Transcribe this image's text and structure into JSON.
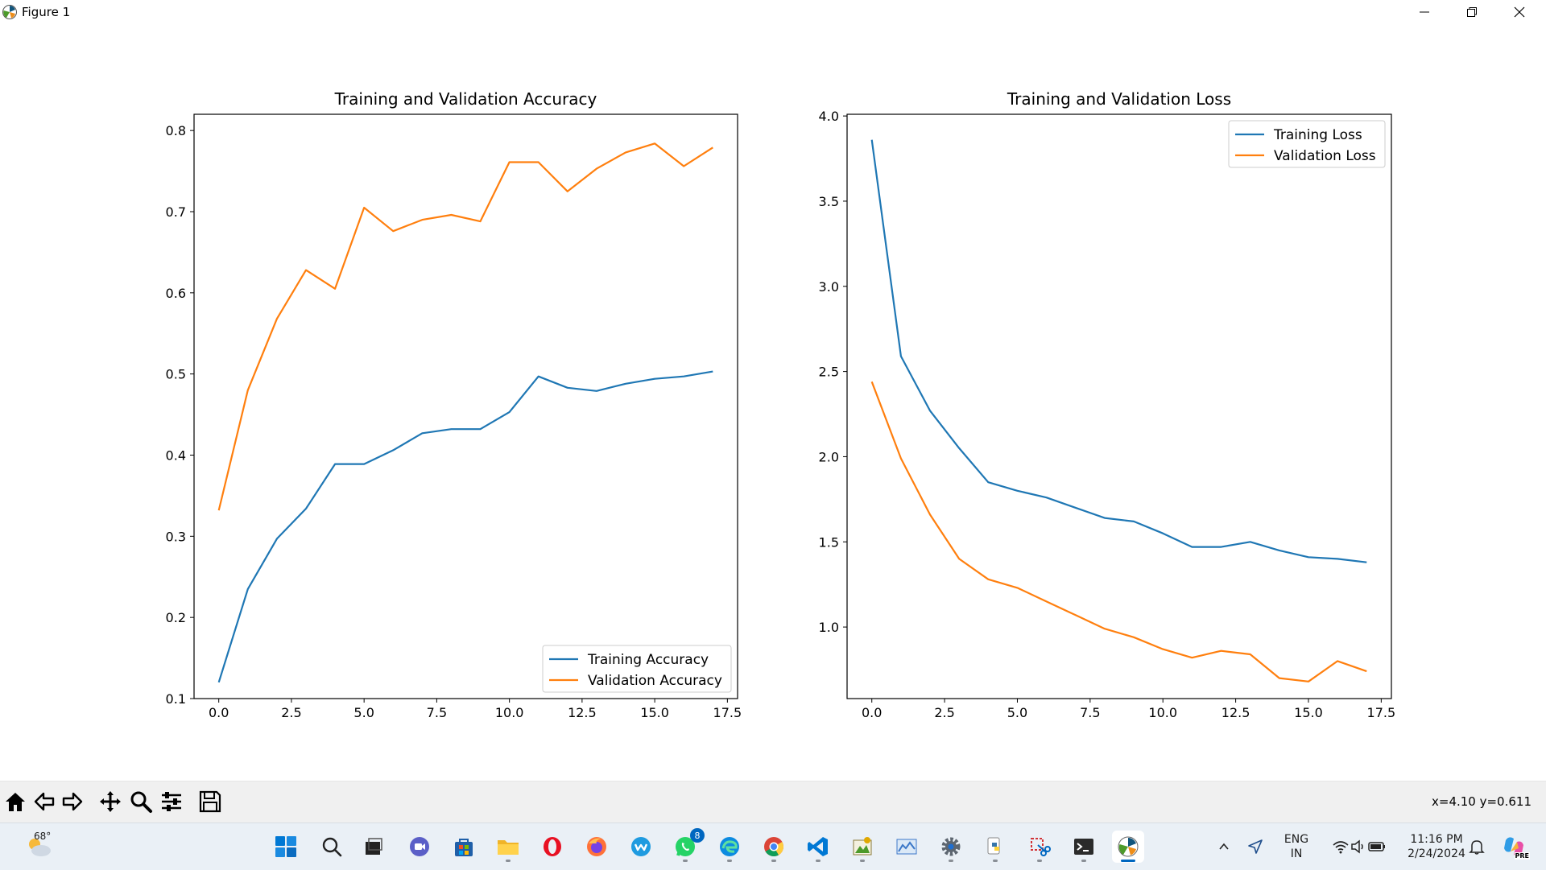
{
  "window": {
    "title": "Figure 1"
  },
  "window_controls": {
    "minimize": "—",
    "restore": "❐",
    "close": "✕"
  },
  "colors": {
    "training": "#1f77b4",
    "validation": "#ff7f0e",
    "axes": "#000000",
    "taskbar_bg": "#eaf0f6",
    "accent": "#0067c0"
  },
  "chart_data": [
    {
      "type": "line",
      "title": "Training and Validation Accuracy",
      "xlabel": "",
      "ylabel": "",
      "xlim": [
        -0.85,
        17.85
      ],
      "ylim": [
        0.1,
        0.82
      ],
      "xticks": [
        "0.0",
        "2.5",
        "5.0",
        "7.5",
        "10.0",
        "12.5",
        "15.0",
        "17.5"
      ],
      "yticks": [
        "0.1",
        "0.2",
        "0.3",
        "0.4",
        "0.5",
        "0.6",
        "0.7",
        "0.8"
      ],
      "grid": false,
      "legend_position": "lower right",
      "x": [
        0,
        1,
        2,
        3,
        4,
        5,
        6,
        7,
        8,
        9,
        10,
        11,
        12,
        13,
        14,
        15,
        16,
        17
      ],
      "series": [
        {
          "name": "Training Accuracy",
          "color": "#1f77b4",
          "values": [
            0.12,
            0.235,
            0.297,
            0.334,
            0.389,
            0.389,
            0.406,
            0.427,
            0.432,
            0.432,
            0.453,
            0.497,
            0.483,
            0.479,
            0.488,
            0.494,
            0.497,
            0.503
          ]
        },
        {
          "name": "Validation Accuracy",
          "color": "#ff7f0e",
          "values": [
            0.332,
            0.48,
            0.568,
            0.628,
            0.605,
            0.705,
            0.676,
            0.69,
            0.696,
            0.688,
            0.761,
            0.761,
            0.725,
            0.753,
            0.773,
            0.784,
            0.756,
            0.779
          ]
        }
      ]
    },
    {
      "type": "line",
      "title": "Training and Validation Loss",
      "xlabel": "",
      "ylabel": "",
      "xlim": [
        -0.85,
        17.85
      ],
      "ylim": [
        0.58,
        4.01
      ],
      "xticks": [
        "0.0",
        "2.5",
        "5.0",
        "7.5",
        "10.0",
        "12.5",
        "15.0",
        "17.5"
      ],
      "yticks": [
        "1.0",
        "1.5",
        "2.0",
        "2.5",
        "3.0",
        "3.5",
        "4.0"
      ],
      "grid": false,
      "legend_position": "upper right",
      "x": [
        0,
        1,
        2,
        3,
        4,
        5,
        6,
        7,
        8,
        9,
        10,
        11,
        12,
        13,
        14,
        15,
        16,
        17
      ],
      "series": [
        {
          "name": "Training Loss",
          "color": "#1f77b4",
          "values": [
            3.86,
            2.59,
            2.27,
            2.05,
            1.85,
            1.8,
            1.76,
            1.7,
            1.64,
            1.62,
            1.55,
            1.47,
            1.47,
            1.5,
            1.45,
            1.41,
            1.4,
            1.38
          ]
        },
        {
          "name": "Validation Loss",
          "color": "#ff7f0e",
          "values": [
            2.44,
            1.99,
            1.66,
            1.4,
            1.28,
            1.23,
            1.15,
            1.07,
            0.99,
            0.94,
            0.87,
            0.82,
            0.86,
            0.84,
            0.7,
            0.68,
            0.8,
            0.74
          ]
        }
      ]
    }
  ],
  "toolbar": {
    "buttons": [
      "home-icon",
      "back-icon",
      "forward-icon",
      "pan-icon",
      "zoom-icon",
      "configure-icon",
      "save-icon"
    ],
    "coords": "x=4.10 y=0.611"
  },
  "taskbar": {
    "weather": "68°",
    "whatsapp_badge": "8",
    "language": "ENG",
    "region": "IN",
    "time": "11:16 PM",
    "date": "2/24/2024",
    "copilot_label": "PRE"
  }
}
